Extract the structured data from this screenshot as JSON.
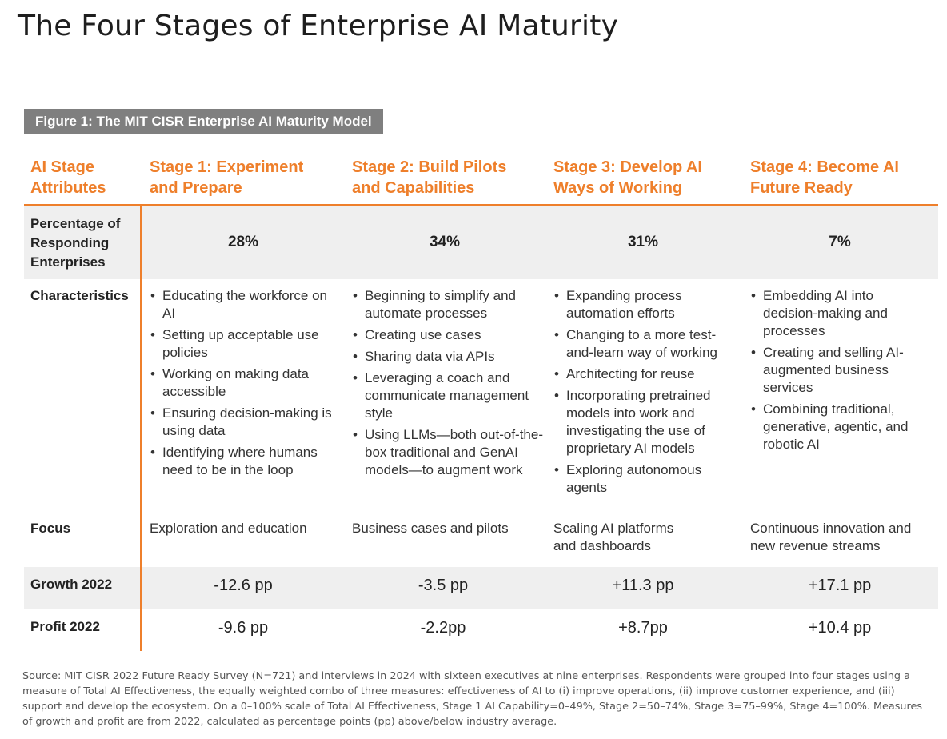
{
  "page_title": "The Four Stages of Enterprise AI Maturity",
  "figure_label": "Figure 1: The MIT CISR Enterprise AI Maturity Model",
  "accent_color": "#ee7f2b",
  "header": {
    "attributes_label": "AI Stage Attributes",
    "stages": [
      "Stage 1: Experiment and Prepare",
      "Stage 2: Build Pilots and Capabilities",
      "Stage 3: Develop AI Ways of Working",
      "Stage 4: Become AI Future Ready"
    ]
  },
  "rows": {
    "percentage": {
      "label": "Percentage of Responding Enterprises",
      "values": [
        "28%",
        "34%",
        "31%",
        "7%"
      ]
    },
    "characteristics": {
      "label": "Characteristics",
      "values": [
        [
          "Educating the workforce on AI",
          "Setting up acceptable use policies",
          "Working on making data accessible",
          "Ensuring decision-making is using data",
          "Identifying where humans need to be in the loop"
        ],
        [
          "Beginning to simplify and automate processes",
          "Creating use cases",
          "Sharing data via APIs",
          "Leveraging a coach and communicate management style",
          "Using LLMs—both out-of-the-box traditional and GenAI models—to augment work"
        ],
        [
          "Expanding process automation efforts",
          "Changing to a more test-and-learn way of working",
          "Architecting for reuse",
          "Incorporating pretrained models into work and investigating the use of proprietary AI models",
          "Exploring autonomous agents"
        ],
        [
          "Embedding AI into decision-making and processes",
          "Creating and selling AI-augmented business services",
          "Combining traditional, generative, agentic, and robotic AI"
        ]
      ]
    },
    "focus": {
      "label": "Focus",
      "values": [
        "Exploration and education",
        "Business cases and pilots",
        "Scaling AI platforms and dashboards",
        "Continuous innovation and new revenue streams"
      ]
    },
    "growth": {
      "label": "Growth 2022",
      "values": [
        "-12.6 pp",
        "-3.5 pp",
        "+11.3 pp",
        "+17.1 pp"
      ]
    },
    "profit": {
      "label": "Profit 2022",
      "values": [
        "-9.6 pp",
        "-2.2pp",
        "+8.7pp",
        "+10.4 pp"
      ]
    }
  },
  "source_note": "Source: MIT CISR 2022 Future Ready Survey (N=721) and interviews in 2024 with sixteen executives at nine enterprises. Respondents were grouped into four stages using a measure of Total AI Effectiveness, the equally weighted combo of three measures: effectiveness of AI to (i) improve operations, (ii) improve customer experience, and (iii) support and develop the ecosystem. On a 0–100% scale of Total AI Effectiveness, Stage 1 AI Capability=0–49%, Stage 2=50–74%, Stage 3=75–99%, Stage 4=100%. Measures of growth and profit are from 2022, calculated as percentage points (pp) above/below industry average."
}
